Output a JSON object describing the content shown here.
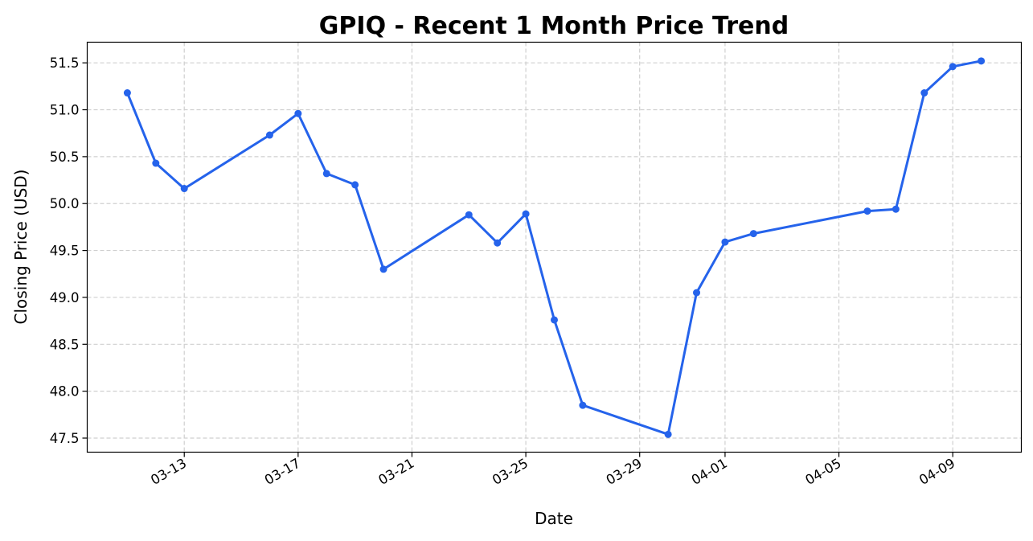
{
  "chart_data": {
    "type": "line",
    "title": "GPIQ - Recent 1 Month Price Trend",
    "xlabel": "Date",
    "ylabel": "Closing Price (USD)",
    "x_axis_type": "date",
    "xlim": [
      "2025-03-09T14:10",
      "2025-04-11T09:50"
    ],
    "ylim": [
      47.35,
      51.72
    ],
    "x_ticks": [
      {
        "date": "2025-03-13",
        "label": "03-13"
      },
      {
        "date": "2025-03-17",
        "label": "03-17"
      },
      {
        "date": "2025-03-21",
        "label": "03-21"
      },
      {
        "date": "2025-03-25",
        "label": "03-25"
      },
      {
        "date": "2025-03-29",
        "label": "03-29"
      },
      {
        "date": "2025-04-01",
        "label": "04-01"
      },
      {
        "date": "2025-04-05",
        "label": "04-05"
      },
      {
        "date": "2025-04-09",
        "label": "04-09"
      }
    ],
    "y_ticks": [
      47.5,
      48.0,
      48.5,
      49.0,
      49.5,
      50.0,
      50.5,
      51.0,
      51.5
    ],
    "grid": true,
    "series": [
      {
        "name": "",
        "color": "#2563eb",
        "x": [
          "2025-03-11",
          "2025-03-12",
          "2025-03-13",
          "2025-03-16",
          "2025-03-17",
          "2025-03-18",
          "2025-03-19",
          "2025-03-20",
          "2025-03-23",
          "2025-03-24",
          "2025-03-25",
          "2025-03-26",
          "2025-03-27",
          "2025-03-30",
          "2025-03-31",
          "2025-04-01",
          "2025-04-02",
          "2025-04-06",
          "2025-04-07",
          "2025-04-08",
          "2025-04-09",
          "2025-04-10"
        ],
        "values": [
          51.18,
          50.43,
          50.16,
          50.73,
          50.96,
          50.32,
          50.2,
          49.3,
          49.88,
          49.58,
          49.89,
          48.76,
          47.85,
          47.54,
          49.05,
          49.59,
          49.68,
          49.92,
          49.94,
          51.18,
          51.46,
          51.52
        ]
      }
    ]
  }
}
